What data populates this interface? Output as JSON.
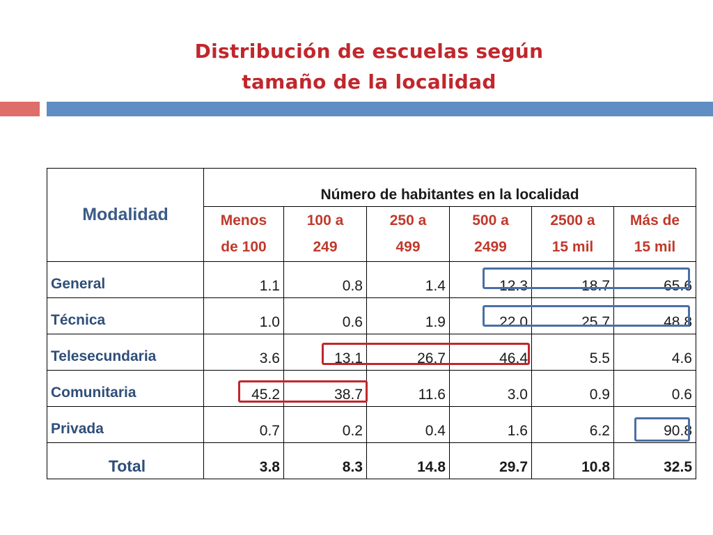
{
  "title": {
    "line1": "Distribución de escuelas según",
    "line2": "tamaño de la localidad"
  },
  "table": {
    "row_header": "Modalidad",
    "group_header": "Número de habitantes en la localidad",
    "columns": [
      {
        "line1": "Menos",
        "line2": "de 100"
      },
      {
        "line1": "100 a",
        "line2": "249"
      },
      {
        "line1": "250 a",
        "line2": "499"
      },
      {
        "line1": "500 a",
        "line2": "2499"
      },
      {
        "line1": "2500 a",
        "line2": "15 mil"
      },
      {
        "line1": "Más de",
        "line2": "15 mil"
      }
    ],
    "rows": [
      {
        "label": "General",
        "values": [
          "1.1",
          "0.8",
          "1.4",
          "12.3",
          "18.7",
          "65.6"
        ]
      },
      {
        "label": "Técnica",
        "values": [
          "1.0",
          "0.6",
          "1.9",
          "22.0",
          "25.7",
          "48.8"
        ]
      },
      {
        "label": "Telesecundaria",
        "values": [
          "3.6",
          "13.1",
          "26.7",
          "46.4",
          "5.5",
          "4.6"
        ]
      },
      {
        "label": "Comunitaria",
        "values": [
          "45.2",
          "38.7",
          "11.6",
          "3.0",
          "0.9",
          "0.6"
        ]
      },
      {
        "label": "Privada",
        "values": [
          "0.7",
          "0.2",
          "0.4",
          "1.6",
          "6.2",
          "90.8"
        ]
      }
    ],
    "total": {
      "label": "Total",
      "values": [
        "3.8",
        "8.3",
        "14.8",
        "29.7",
        "10.8",
        "32.5"
      ]
    }
  },
  "colors": {
    "title": "#c0272d",
    "header_text": "#c0392b",
    "row_label": "#2f4e79",
    "highlight_blue": "#4a6fa5",
    "highlight_red": "#c0272d"
  }
}
